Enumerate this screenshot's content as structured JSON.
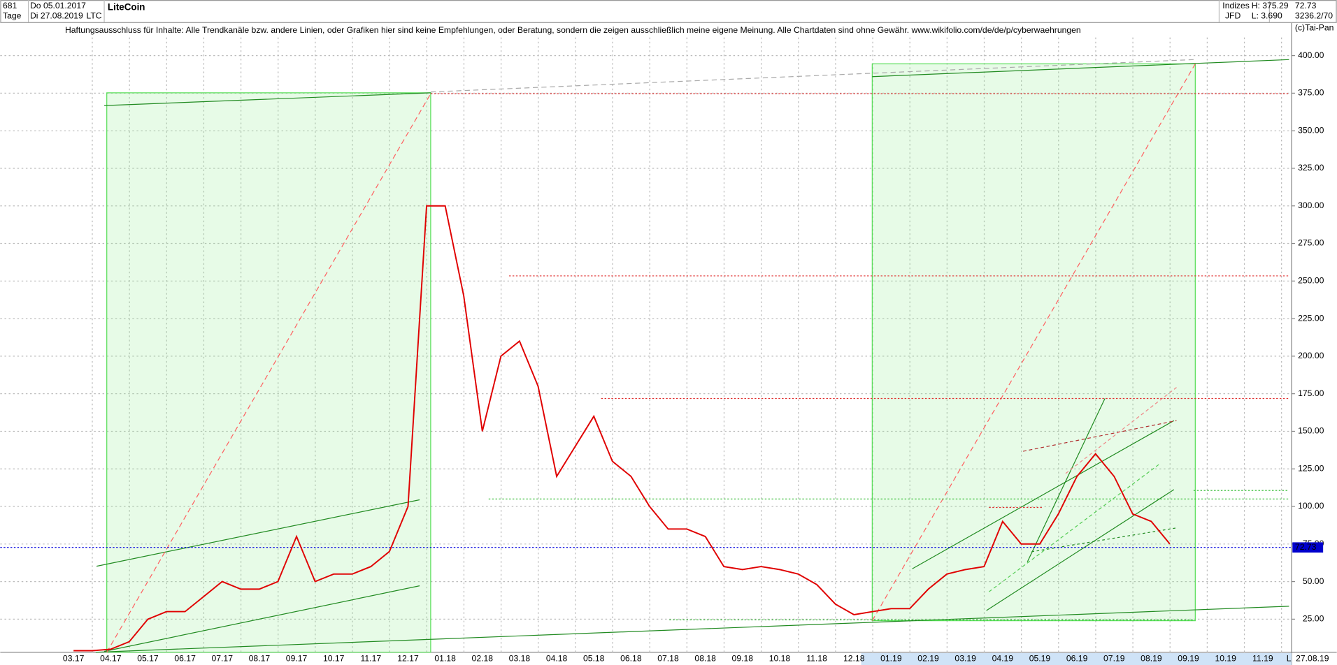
{
  "header": {
    "count": "681",
    "period": "Tage",
    "start": "Do 05.01.2017",
    "end": "Di 27.08.2019",
    "symbol": "LTC",
    "group": "Indizes",
    "broker": "JFD",
    "high": "H: 375.29",
    "low": "L: 3.690",
    "volume": "3236.2/70",
    "copyright": "(c)Tai-Pan",
    "disclaimer": "Haftungsausschluss für Inhalte: Alle Trendkanäle bzw. andere Linien, oder Grafiken hier sind keine Empfehlungen, oder Beratung, sondern die zeigen ausschließlich meine eigene Meinung. Alle Chartdaten sind ohne Gewähr.  www.wikifolio.com/de/de/p/cyberwaehrungen",
    "scale_mode": "L",
    "last_date": "27.08.19"
  },
  "chart_data": {
    "type": "line",
    "title": "LiteCoin",
    "color": "#e00000",
    "grid": true,
    "last_value": 72.73,
    "categories": [
      "03.17",
      null,
      "04.17",
      null,
      "05.17",
      null,
      "06.17",
      null,
      "07.17",
      null,
      "08.17",
      null,
      "09.17",
      null,
      "10.17",
      null,
      "11.17",
      null,
      "12.17",
      null,
      "01.18",
      null,
      "02.18",
      null,
      "03.18",
      null,
      "04.18",
      null,
      "05.18",
      null,
      "06.18",
      null,
      "07.18",
      null,
      "08.18",
      null,
      "09.18",
      null,
      "10.18",
      null,
      "11.18",
      null,
      "12.18",
      null,
      "01.19",
      null,
      "02.19",
      null,
      "03.19",
      null,
      "04.19",
      null,
      "05.19",
      null,
      "06.19",
      null,
      "07.19",
      null,
      "08.19",
      null,
      "09.19",
      null,
      "10.19",
      null,
      "11.19",
      null
    ],
    "values": [
      4,
      4,
      5,
      10,
      25,
      30,
      30,
      40,
      50,
      45,
      45,
      50,
      80,
      50,
      55,
      55,
      60,
      70,
      100,
      300,
      300,
      240,
      150,
      200,
      210,
      180,
      120,
      140,
      160,
      130,
      120,
      100,
      85,
      85,
      80,
      60,
      58,
      60,
      58,
      55,
      48,
      35,
      28,
      30,
      32,
      32,
      45,
      55,
      58,
      60,
      90,
      75,
      75,
      95,
      120,
      135,
      120,
      95,
      90,
      75,
      null,
      null,
      null,
      null,
      null,
      null
    ],
    "ylim": [
      3,
      437
    ],
    "yticks": [
      {
        "value": 25,
        "label": "25.00"
      },
      {
        "value": 50,
        "label": "50.00"
      },
      {
        "value": 75,
        "label": "75.00"
      },
      {
        "value": 100,
        "label": "100.00"
      },
      {
        "value": 125,
        "label": "125.00"
      },
      {
        "value": 150,
        "label": "150.00"
      },
      {
        "value": 175,
        "label": "175.00"
      },
      {
        "value": 200,
        "label": "200.00"
      },
      {
        "value": 225,
        "label": "225.00"
      },
      {
        "value": 250,
        "label": "250.00"
      },
      {
        "value": 275,
        "label": "275.00"
      },
      {
        "value": 300,
        "label": "300.00"
      },
      {
        "value": 325,
        "label": "325.00"
      },
      {
        "value": 350,
        "label": "350.00"
      },
      {
        "value": 375,
        "label": "375.00"
      },
      {
        "value": 400,
        "label": "400.00"
      }
    ]
  }
}
